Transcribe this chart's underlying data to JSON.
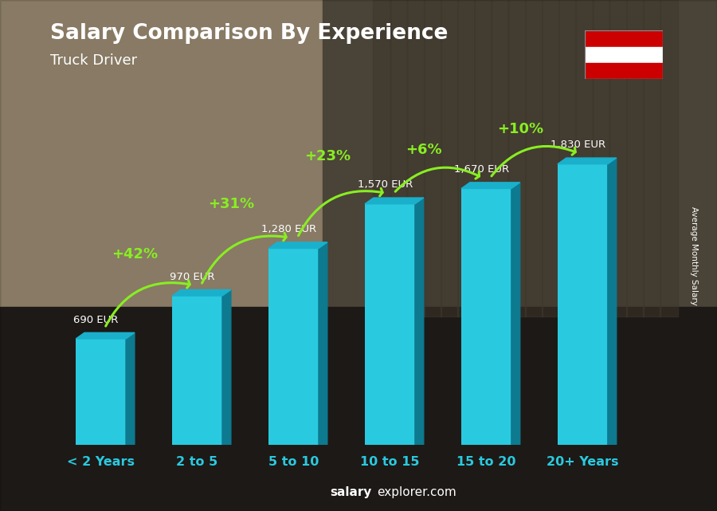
{
  "title": "Salary Comparison By Experience",
  "subtitle": "Truck Driver",
  "categories": [
    "< 2 Years",
    "2 to 5",
    "5 to 10",
    "10 to 15",
    "15 to 20",
    "20+ Years"
  ],
  "values": [
    690,
    970,
    1280,
    1570,
    1670,
    1830
  ],
  "value_labels": [
    "690 EUR",
    "970 EUR",
    "1,280 EUR",
    "1,570 EUR",
    "1,670 EUR",
    "1,830 EUR"
  ],
  "pct_labels": [
    "+42%",
    "+31%",
    "+23%",
    "+6%",
    "+10%"
  ],
  "bar_color": "#29cae0",
  "bar_color_top": "#1ab0cc",
  "bar_color_side": "#0d7a90",
  "title_color": "#ffffff",
  "subtitle_color": "#ffffff",
  "xticklabel_color": "#29cae0",
  "value_label_color": "#ffffff",
  "pct_label_color": "#88ee22",
  "arrow_color": "#88ee22",
  "footer_salary_color": "#ffffff",
  "footer_explorer_color": "#ffffff",
  "ylabel_text": "Average Monthly Salary",
  "bg_colors": [
    "#c8b89a",
    "#b09070",
    "#7a6050",
    "#4a3a30",
    "#2a2a2a",
    "#1a1a1a"
  ],
  "ylim": [
    0,
    2200
  ],
  "fig_width": 9.0,
  "fig_height": 6.41
}
